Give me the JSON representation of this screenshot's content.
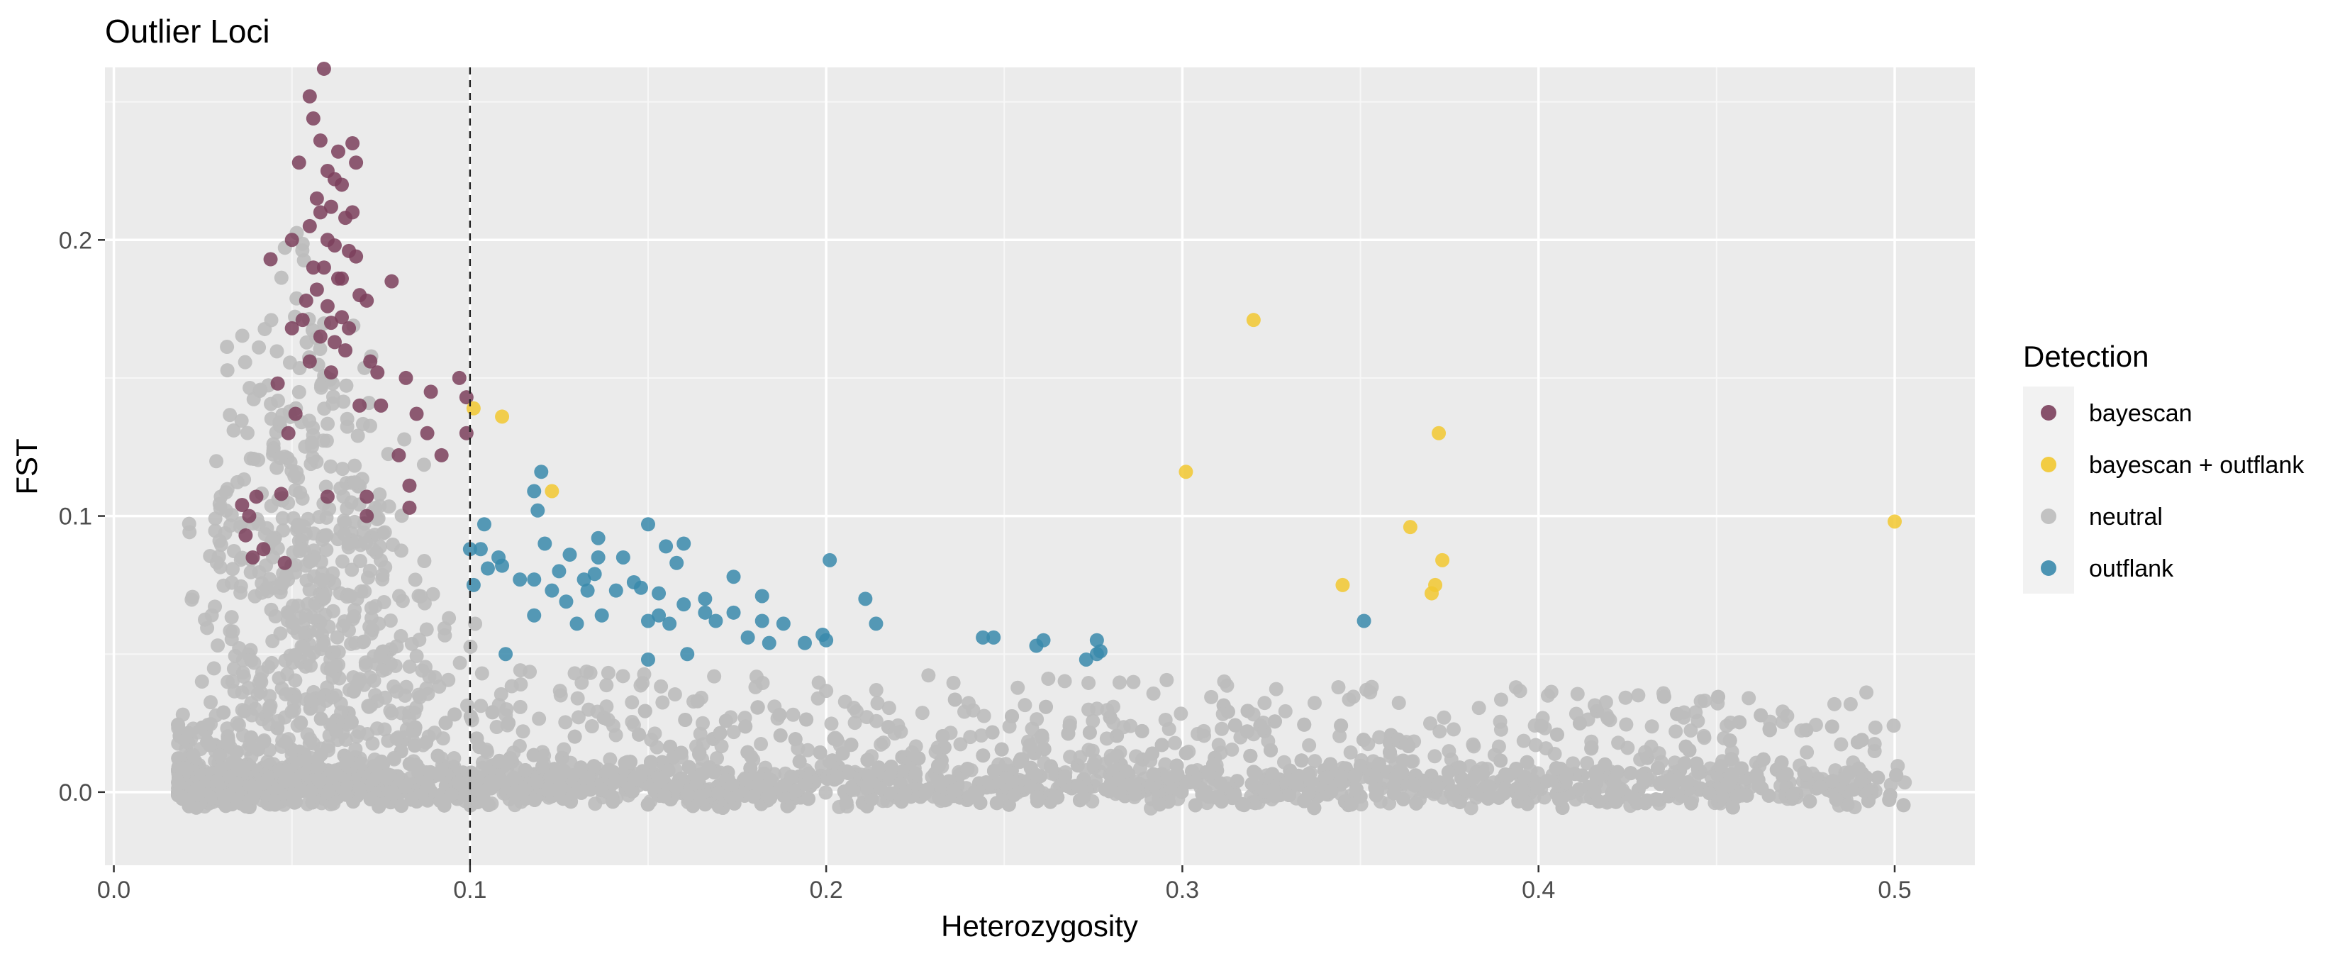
{
  "chart_data": {
    "type": "scatter",
    "title": "Outlier Loci",
    "xlabel": "Heterozygosity",
    "ylabel": "FST",
    "xlim": [
      -0.0025,
      0.5225
    ],
    "ylim": [
      -0.0265,
      0.2625
    ],
    "x_ticks": [
      0.0,
      0.1,
      0.2,
      0.3,
      0.4,
      0.5
    ],
    "x_tick_labels": [
      "0.0",
      "0.1",
      "0.2",
      "0.3",
      "0.4",
      "0.5"
    ],
    "y_ticks": [
      0.0,
      0.1,
      0.2
    ],
    "y_tick_labels": [
      "0.0",
      "0.1",
      "0.2"
    ],
    "vline": {
      "x": 0.1,
      "style": "dashed"
    },
    "grid": true,
    "legend": {
      "title": "Detection",
      "position": "right",
      "entries": [
        "bayescan",
        "bayescan + outflank",
        "neutral",
        "outflank"
      ]
    },
    "colors": {
      "bayescan": "#7b3f5c",
      "bayescan + outflank": "#f2c830",
      "neutral": "#bdbdbd",
      "outflank": "#3a8aac",
      "panel_bg": "#ebebeb",
      "grid_major": "#ffffff"
    },
    "series": [
      {
        "name": "bayescan",
        "points": [
          [
            0.059,
            0.262
          ],
          [
            0.055,
            0.252
          ],
          [
            0.056,
            0.244
          ],
          [
            0.058,
            0.236
          ],
          [
            0.063,
            0.232
          ],
          [
            0.067,
            0.235
          ],
          [
            0.052,
            0.228
          ],
          [
            0.06,
            0.225
          ],
          [
            0.064,
            0.22
          ],
          [
            0.068,
            0.228
          ],
          [
            0.057,
            0.215
          ],
          [
            0.061,
            0.212
          ],
          [
            0.065,
            0.208
          ],
          [
            0.055,
            0.205
          ],
          [
            0.05,
            0.2
          ],
          [
            0.062,
            0.198
          ],
          [
            0.066,
            0.196
          ],
          [
            0.059,
            0.19
          ],
          [
            0.063,
            0.186
          ],
          [
            0.057,
            0.182
          ],
          [
            0.069,
            0.18
          ],
          [
            0.06,
            0.176
          ],
          [
            0.064,
            0.172
          ],
          [
            0.053,
            0.171
          ],
          [
            0.071,
            0.178
          ],
          [
            0.058,
            0.165
          ],
          [
            0.062,
            0.163
          ],
          [
            0.066,
            0.168
          ],
          [
            0.05,
            0.168
          ],
          [
            0.055,
            0.156
          ],
          [
            0.061,
            0.152
          ],
          [
            0.046,
            0.148
          ],
          [
            0.044,
            0.193
          ],
          [
            0.078,
            0.185
          ],
          [
            0.072,
            0.156
          ],
          [
            0.069,
            0.14
          ],
          [
            0.074,
            0.152
          ],
          [
            0.082,
            0.15
          ],
          [
            0.089,
            0.145
          ],
          [
            0.097,
            0.15
          ],
          [
            0.099,
            0.143
          ],
          [
            0.088,
            0.13
          ],
          [
            0.085,
            0.137
          ],
          [
            0.092,
            0.122
          ],
          [
            0.08,
            0.122
          ],
          [
            0.083,
            0.111
          ],
          [
            0.083,
            0.103
          ],
          [
            0.071,
            0.107
          ],
          [
            0.071,
            0.1
          ],
          [
            0.06,
            0.107
          ],
          [
            0.051,
            0.137
          ],
          [
            0.049,
            0.13
          ],
          [
            0.099,
            0.13
          ],
          [
            0.075,
            0.14
          ],
          [
            0.04,
            0.107
          ],
          [
            0.038,
            0.1
          ],
          [
            0.037,
            0.093
          ],
          [
            0.042,
            0.088
          ],
          [
            0.039,
            0.085
          ],
          [
            0.036,
            0.104
          ],
          [
            0.048,
            0.083
          ],
          [
            0.047,
            0.108
          ],
          [
            0.062,
            0.222
          ],
          [
            0.058,
            0.21
          ],
          [
            0.064,
            0.186
          ],
          [
            0.06,
            0.2
          ],
          [
            0.056,
            0.19
          ],
          [
            0.067,
            0.21
          ],
          [
            0.061,
            0.17
          ],
          [
            0.054,
            0.178
          ],
          [
            0.068,
            0.194
          ],
          [
            0.065,
            0.16
          ]
        ]
      },
      {
        "name": "bayescan + outflank",
        "points": [
          [
            0.32,
            0.171
          ],
          [
            0.101,
            0.139
          ],
          [
            0.109,
            0.136
          ],
          [
            0.372,
            0.13
          ],
          [
            0.301,
            0.116
          ],
          [
            0.123,
            0.109
          ],
          [
            0.5,
            0.098
          ],
          [
            0.364,
            0.096
          ],
          [
            0.373,
            0.084
          ],
          [
            0.345,
            0.075
          ],
          [
            0.371,
            0.075
          ],
          [
            0.37,
            0.072
          ]
        ]
      },
      {
        "name": "neutral",
        "points": []
      },
      {
        "name": "outflank",
        "points": [
          [
            0.12,
            0.116
          ],
          [
            0.118,
            0.109
          ],
          [
            0.119,
            0.102
          ],
          [
            0.104,
            0.097
          ],
          [
            0.15,
            0.097
          ],
          [
            0.136,
            0.092
          ],
          [
            0.155,
            0.089
          ],
          [
            0.16,
            0.09
          ],
          [
            0.1,
            0.088
          ],
          [
            0.103,
            0.088
          ],
          [
            0.108,
            0.085
          ],
          [
            0.128,
            0.086
          ],
          [
            0.136,
            0.085
          ],
          [
            0.143,
            0.085
          ],
          [
            0.158,
            0.083
          ],
          [
            0.201,
            0.084
          ],
          [
            0.105,
            0.081
          ],
          [
            0.109,
            0.082
          ],
          [
            0.121,
            0.09
          ],
          [
            0.125,
            0.08
          ],
          [
            0.135,
            0.079
          ],
          [
            0.146,
            0.076
          ],
          [
            0.132,
            0.077
          ],
          [
            0.174,
            0.078
          ],
          [
            0.101,
            0.075
          ],
          [
            0.114,
            0.077
          ],
          [
            0.118,
            0.077
          ],
          [
            0.123,
            0.073
          ],
          [
            0.127,
            0.069
          ],
          [
            0.133,
            0.073
          ],
          [
            0.141,
            0.073
          ],
          [
            0.148,
            0.074
          ],
          [
            0.153,
            0.072
          ],
          [
            0.16,
            0.068
          ],
          [
            0.166,
            0.07
          ],
          [
            0.174,
            0.065
          ],
          [
            0.182,
            0.071
          ],
          [
            0.211,
            0.07
          ],
          [
            0.118,
            0.064
          ],
          [
            0.13,
            0.061
          ],
          [
            0.137,
            0.064
          ],
          [
            0.15,
            0.062
          ],
          [
            0.156,
            0.061
          ],
          [
            0.169,
            0.062
          ],
          [
            0.182,
            0.062
          ],
          [
            0.188,
            0.061
          ],
          [
            0.214,
            0.061
          ],
          [
            0.178,
            0.056
          ],
          [
            0.184,
            0.054
          ],
          [
            0.194,
            0.054
          ],
          [
            0.199,
            0.057
          ],
          [
            0.2,
            0.055
          ],
          [
            0.244,
            0.056
          ],
          [
            0.247,
            0.056
          ],
          [
            0.261,
            0.055
          ],
          [
            0.276,
            0.055
          ],
          [
            0.11,
            0.05
          ],
          [
            0.15,
            0.048
          ],
          [
            0.161,
            0.05
          ],
          [
            0.259,
            0.053
          ],
          [
            0.276,
            0.05
          ],
          [
            0.277,
            0.051
          ],
          [
            0.273,
            0.048
          ],
          [
            0.351,
            0.062
          ],
          [
            0.153,
            0.064
          ],
          [
            0.166,
            0.065
          ]
        ]
      }
    ]
  }
}
